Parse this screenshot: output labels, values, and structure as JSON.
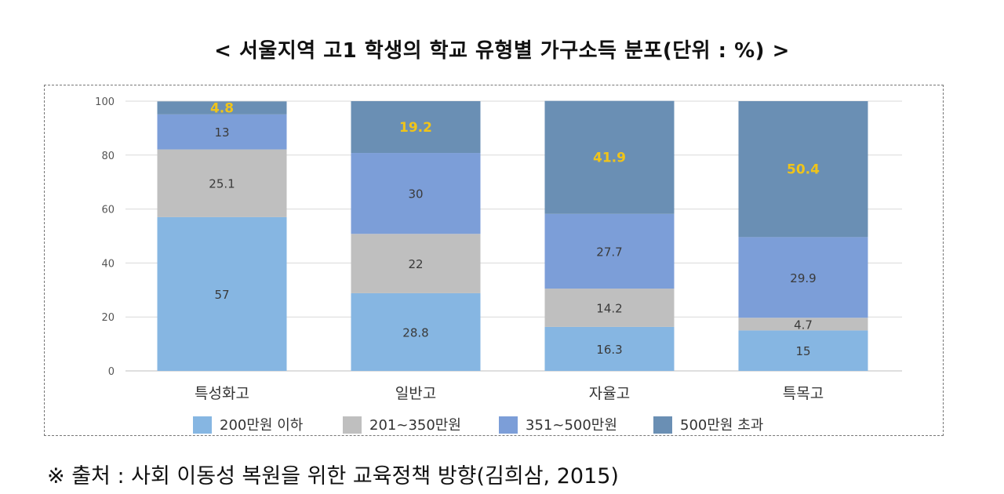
{
  "title": "< 서울지역 고1 학생의 학교 유형별 가구소득 분포(단위 : %) >",
  "source": "※ 출처 : 사회 이동성 복원을 위한 교육정책 방향(김희삼, 2015)",
  "chart_data": {
    "type": "bar",
    "stacked": true,
    "categories": [
      "특성화고",
      "일반고",
      "자율고",
      "특목고"
    ],
    "series": [
      {
        "name": "200만원 이하",
        "values": [
          57,
          28.8,
          16.3,
          15
        ],
        "color": "#86b6e2",
        "label_color": "#3a3a3a"
      },
      {
        "name": "201~350만원",
        "values": [
          25.1,
          22,
          14.2,
          4.7
        ],
        "color": "#bfbfbf",
        "label_color": "#3a3a3a"
      },
      {
        "name": "351~500만원",
        "values": [
          13,
          30,
          27.7,
          29.9
        ],
        "color": "#7c9ed8",
        "label_color": "#3a3a3a"
      },
      {
        "name": "500만원 초과",
        "values": [
          4.8,
          19.2,
          41.9,
          50.4
        ],
        "color": "#6a8fb4",
        "label_color": "#f0c419"
      }
    ],
    "ylim": [
      0,
      100
    ],
    "yticks": [
      0,
      20,
      40,
      60,
      80,
      100
    ],
    "grid": true,
    "legend": "bottom"
  }
}
